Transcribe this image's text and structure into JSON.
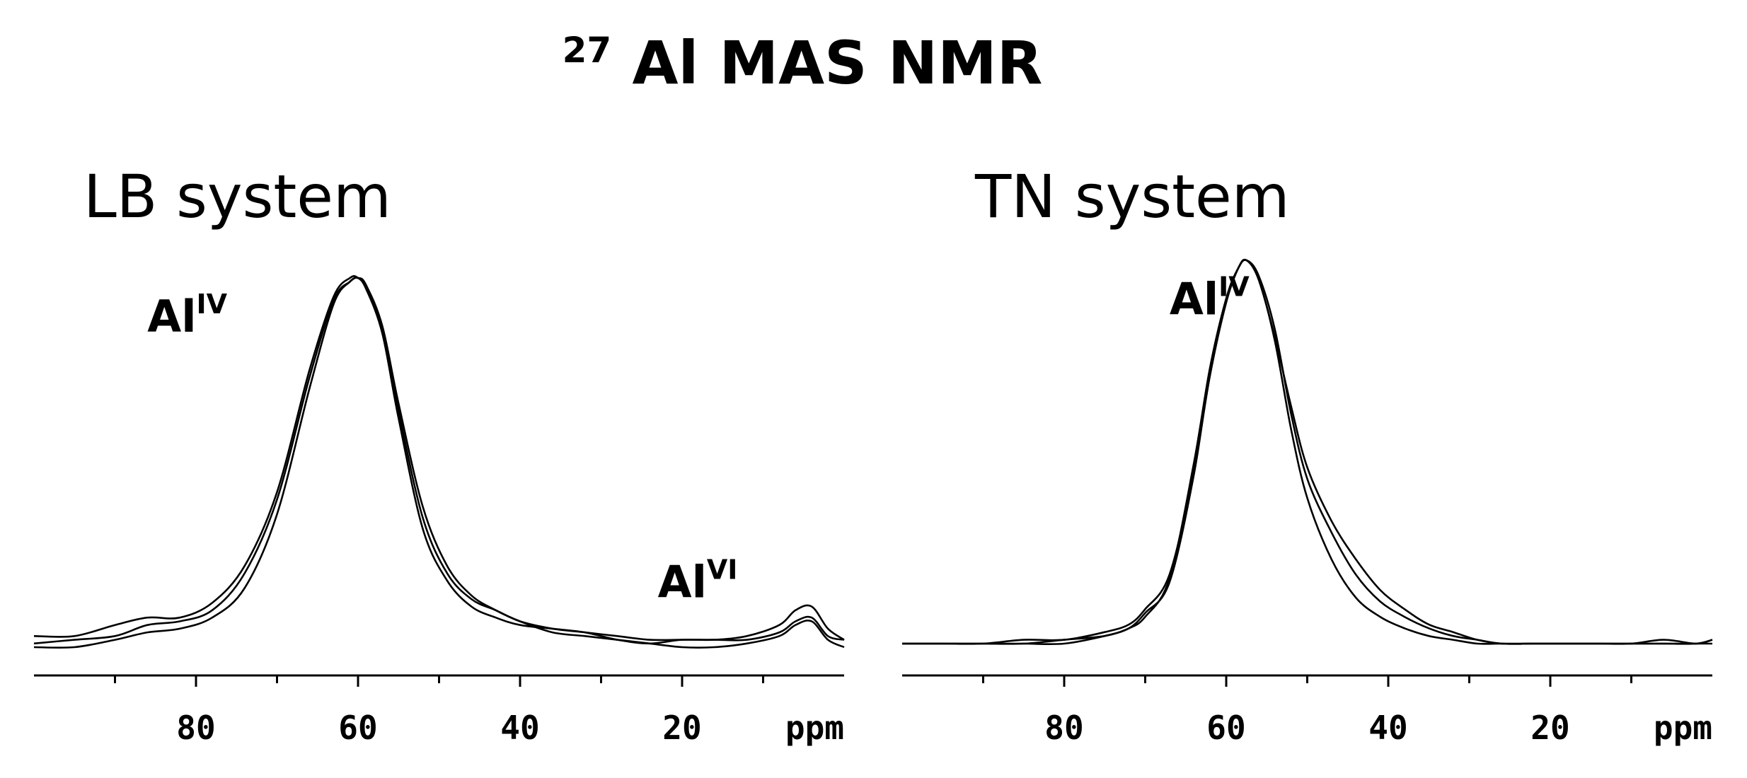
{
  "figure_title": {
    "superscript": "27",
    "text": "Al MAS NMR"
  },
  "chart_data": [
    {
      "type": "line",
      "title": "LB system",
      "xlabel": "ppm",
      "xlim": [
        100,
        0
      ],
      "ylim": [
        0,
        1
      ],
      "xticks": [
        80,
        60,
        40,
        20
      ],
      "minor_tick_step": 10,
      "grid": false,
      "annotations": [
        {
          "base": "Al",
          "sup": "IV",
          "x": 86,
          "y": 0.96
        },
        {
          "base": "Al",
          "sup": "VI",
          "x": 23,
          "y": 0.24
        }
      ],
      "series": [
        {
          "x": [
            100,
            95,
            90,
            86,
            82,
            78,
            74,
            70,
            66,
            63,
            61,
            60,
            59,
            57,
            55,
            52,
            49,
            46,
            43,
            40,
            36,
            32,
            28,
            24,
            20,
            16,
            12,
            8,
            6,
            4,
            2,
            0
          ],
          "y": [
            0.03,
            0.03,
            0.06,
            0.08,
            0.08,
            0.12,
            0.22,
            0.42,
            0.75,
            0.95,
            1.0,
            1.0,
            0.97,
            0.85,
            0.62,
            0.32,
            0.18,
            0.11,
            0.08,
            0.06,
            0.05,
            0.04,
            0.02,
            0.01,
            0.02,
            0.02,
            0.03,
            0.06,
            0.1,
            0.11,
            0.05,
            0.02
          ]
        },
        {
          "x": [
            100,
            95,
            90,
            86,
            82,
            78,
            74,
            70,
            66,
            63,
            61,
            60,
            59,
            57,
            55,
            52,
            49,
            46,
            43,
            40,
            36,
            32,
            28,
            24,
            20,
            16,
            12,
            8,
            6,
            4,
            2,
            0
          ],
          "y": [
            0.01,
            0.02,
            0.03,
            0.06,
            0.07,
            0.1,
            0.2,
            0.4,
            0.73,
            0.94,
            0.99,
            1.0,
            0.98,
            0.86,
            0.64,
            0.35,
            0.2,
            0.13,
            0.1,
            0.07,
            0.05,
            0.04,
            0.03,
            0.02,
            0.02,
            0.02,
            0.02,
            0.04,
            0.07,
            0.08,
            0.03,
            0.02
          ]
        },
        {
          "x": [
            100,
            95,
            90,
            86,
            82,
            78,
            74,
            70,
            66,
            63,
            61,
            60,
            59,
            57,
            55,
            52,
            49,
            46,
            43,
            40,
            36,
            32,
            28,
            24,
            20,
            16,
            12,
            8,
            6,
            4,
            2,
            0
          ],
          "y": [
            0.0,
            0.0,
            0.02,
            0.04,
            0.05,
            0.08,
            0.16,
            0.36,
            0.7,
            0.93,
            0.99,
            1.0,
            0.98,
            0.87,
            0.66,
            0.38,
            0.22,
            0.14,
            0.1,
            0.07,
            0.04,
            0.03,
            0.02,
            0.01,
            0.0,
            0.0,
            0.01,
            0.03,
            0.06,
            0.07,
            0.02,
            0.0
          ]
        }
      ]
    },
    {
      "type": "line",
      "title": "TN system",
      "xlabel": "ppm",
      "xlim": [
        100,
        0
      ],
      "ylim": [
        0,
        1
      ],
      "xticks": [
        80,
        60,
        40,
        20
      ],
      "minor_tick_step": 10,
      "grid": false,
      "annotations": [
        {
          "base": "Al",
          "sup": "IV",
          "x": 67,
          "y": 0.96
        }
      ],
      "series": [
        {
          "x": [
            100,
            95,
            90,
            85,
            80,
            75,
            72,
            70,
            67,
            64,
            62,
            60,
            58.5,
            57.5,
            56,
            54,
            52,
            50,
            47,
            44,
            41,
            38,
            35,
            32,
            29,
            26,
            22,
            18,
            14,
            10,
            6,
            2,
            0
          ],
          "y": [
            0.0,
            0.0,
            0.0,
            0.0,
            0.01,
            0.02,
            0.04,
            0.07,
            0.17,
            0.47,
            0.72,
            0.9,
            0.98,
            1.0,
            0.96,
            0.82,
            0.6,
            0.43,
            0.29,
            0.18,
            0.11,
            0.07,
            0.04,
            0.02,
            0.01,
            0.0,
            0.0,
            0.0,
            0.0,
            0.0,
            0.0,
            0.0,
            0.01
          ]
        },
        {
          "x": [
            100,
            95,
            90,
            85,
            80,
            75,
            72,
            70,
            67,
            64,
            62,
            60,
            58.5,
            57.5,
            56,
            54,
            52,
            50,
            47,
            44,
            41,
            38,
            35,
            32,
            29,
            26,
            22,
            18,
            14,
            10,
            6,
            2,
            0
          ],
          "y": [
            0.0,
            0.0,
            0.0,
            0.01,
            0.01,
            0.03,
            0.05,
            0.09,
            0.18,
            0.45,
            0.7,
            0.89,
            0.98,
            1.0,
            0.95,
            0.8,
            0.62,
            0.46,
            0.32,
            0.22,
            0.14,
            0.09,
            0.05,
            0.03,
            0.01,
            0.0,
            0.0,
            0.0,
            0.0,
            0.0,
            0.01,
            0.0,
            0.01
          ]
        },
        {
          "x": [
            100,
            95,
            90,
            85,
            80,
            75,
            72,
            70,
            67,
            64,
            62,
            60,
            58.5,
            57.5,
            56,
            54,
            52,
            50,
            47,
            44,
            41,
            38,
            35,
            32,
            29,
            26,
            22,
            18,
            14,
            10,
            6,
            2,
            0
          ],
          "y": [
            0.0,
            0.0,
            0.0,
            0.0,
            0.0,
            0.02,
            0.04,
            0.08,
            0.16,
            0.44,
            0.71,
            0.9,
            0.98,
            1.0,
            0.95,
            0.79,
            0.56,
            0.38,
            0.22,
            0.12,
            0.07,
            0.04,
            0.02,
            0.01,
            0.0,
            0.0,
            0.0,
            0.0,
            0.0,
            0.0,
            0.0,
            0.0,
            0.0
          ]
        }
      ]
    }
  ]
}
